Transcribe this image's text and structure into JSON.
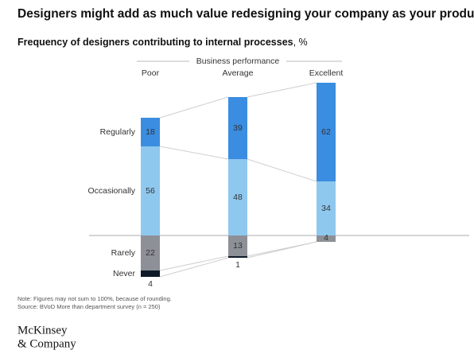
{
  "chart_data": {
    "type": "bar",
    "stacked": true,
    "title": "Designers might add as much value redesigning your company as your product.",
    "subtitle": "Frequency of designers contributing to internal processes",
    "unit": ", %",
    "x_label": "Business performance",
    "categories": [
      "Poor",
      "Average",
      "Excellent"
    ],
    "series": [
      {
        "name": "Regularly",
        "color": "#3a8de0",
        "side": "above",
        "values": [
          18,
          39,
          62
        ]
      },
      {
        "name": "Occasionally",
        "color": "#8fc8ef",
        "side": "above",
        "values": [
          56,
          48,
          34
        ]
      },
      {
        "name": "Rarely",
        "color": "#8d9096",
        "side": "below",
        "values": [
          22,
          13,
          4
        ]
      },
      {
        "name": "Never",
        "color": "#0f1a29",
        "side": "below",
        "values": [
          4,
          1,
          null
        ]
      }
    ],
    "note": "Note: Figures may not sum to 100%, because of rounding.",
    "source": "Source: BVoD More than department survey (n = 250)"
  },
  "footer": {
    "logo": [
      "McKinsey",
      "& Company"
    ]
  }
}
